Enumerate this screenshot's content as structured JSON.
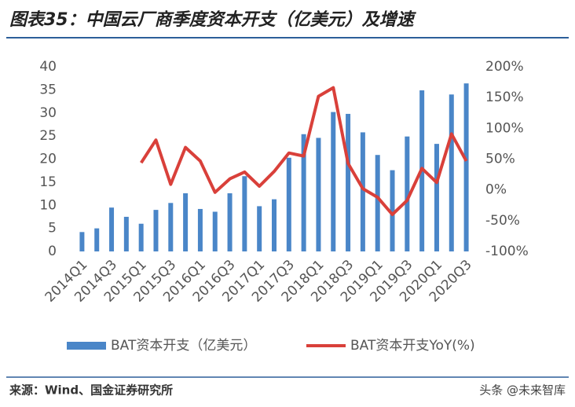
{
  "chart_data": {
    "type": "bar-line",
    "title": "图表35：中国云厂商季度资本开支（亿美元）及增速",
    "source": "来源：Wind、国金证券研究所",
    "watermark": "头条 @未来智库",
    "categories": [
      "2014Q1",
      null,
      "2014Q3",
      null,
      "2015Q1",
      null,
      "2015Q3",
      null,
      "2016Q1",
      null,
      "2016Q3",
      null,
      "2017Q1",
      null,
      "2017Q3",
      null,
      "2018Q1",
      null,
      "2018Q3",
      null,
      "2019Q1",
      null,
      "2019Q3",
      null,
      "2020Q1",
      null,
      "2020Q3"
    ],
    "series": [
      {
        "name": "BAT资本开支（亿美元）",
        "color": "#4a86c8",
        "kind": "bar",
        "values": [
          4.2,
          5,
          9.5,
          7.5,
          6,
          9,
          10.5,
          12.6,
          9.2,
          8.6,
          12.6,
          16.3,
          9.8,
          11.3,
          20.3,
          25.4,
          24.6,
          30.2,
          29.8,
          25.8,
          20.9,
          17.6,
          24.9,
          34.9,
          23.3,
          34,
          36.4
        ]
      },
      {
        "name": "BAT资本开支YoY(%)",
        "color": "#d9403a",
        "kind": "line",
        "axis": "y2",
        "values": [
          null,
          null,
          null,
          null,
          44,
          81,
          9,
          69,
          47,
          -4,
          18,
          29,
          6,
          30,
          60,
          55,
          152,
          166,
          43,
          2,
          -12,
          -40,
          -17,
          35,
          12,
          91,
          47
        ]
      }
    ],
    "ylim": [
      0,
      40
    ],
    "yticks": [
      0,
      5,
      10,
      15,
      20,
      25,
      30,
      35,
      40
    ],
    "y2lim": [
      -100,
      200
    ],
    "y2ticks": [
      {
        "value": -100,
        "label": "-100%"
      },
      {
        "value": -50,
        "label": "-50%"
      },
      {
        "value": 0,
        "label": "0%"
      },
      {
        "value": 50,
        "label": "50%"
      },
      {
        "value": 100,
        "label": "100%"
      },
      {
        "value": 150,
        "label": "150%"
      },
      {
        "value": 200,
        "label": "200%"
      }
    ],
    "grid": false,
    "legend": "bottom"
  }
}
